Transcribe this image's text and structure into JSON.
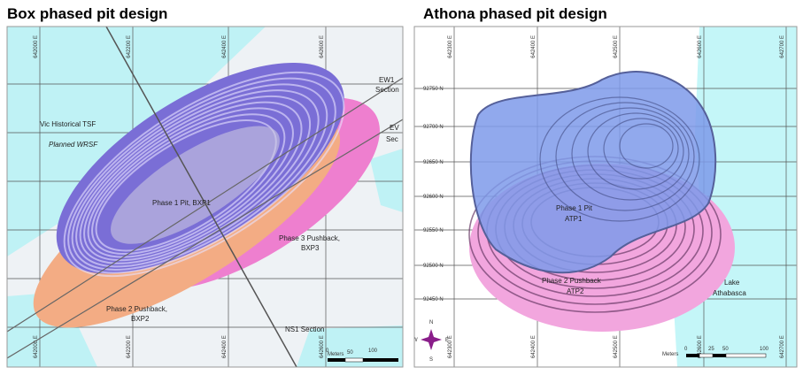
{
  "left_panel": {
    "title": "Box phased pit design",
    "easting_labels_top": [
      "642000 E",
      "642200 E",
      "642400 E",
      "642600 E"
    ],
    "easting_labels_bottom": [
      "642000 E",
      "642200 E",
      "642400 E",
      "642600 E"
    ],
    "labels": {
      "tsf": "Vic Historical TSF",
      "wrsf": "Planned WRSF",
      "phase1": "Phase 1 Pit, BXP1",
      "phase3": [
        "Phase 3 Pushback,",
        "BXP3"
      ],
      "phase2": [
        "Phase 2 Pushback,",
        "BXP2"
      ],
      "ns1": "NS1 Section",
      "ew1": [
        "EW1",
        "Section"
      ],
      "ew2": [
        "EV",
        "Sec"
      ]
    },
    "scale": {
      "unit": "Meters",
      "ticks": [
        "0",
        "50",
        "100"
      ]
    }
  },
  "right_panel": {
    "title": "Athona phased pit design",
    "easting_labels_top": [
      "642300 E",
      "642400 E",
      "642500 E",
      "642600 E",
      "642700 E"
    ],
    "easting_labels_bottom": [
      "642300 E",
      "642400 E",
      "642500 E",
      "642600 E",
      "642700 E"
    ],
    "northing_labels": [
      "92750 N",
      "92700 N",
      "92650 N",
      "92600 N",
      "92550 N",
      "92500 N",
      "92450 N"
    ],
    "labels": {
      "phase1": [
        "Phase 1 Pit",
        "ATP1"
      ],
      "phase2": [
        "Phase 2 Pushback",
        "ATP2"
      ],
      "lake": [
        "Lake",
        "Athabasca"
      ]
    },
    "compass": [
      "N",
      "E",
      "S",
      "W"
    ],
    "scale": {
      "unit": "Meters",
      "ticks": [
        "0",
        "25",
        "50",
        "100"
      ]
    }
  }
}
